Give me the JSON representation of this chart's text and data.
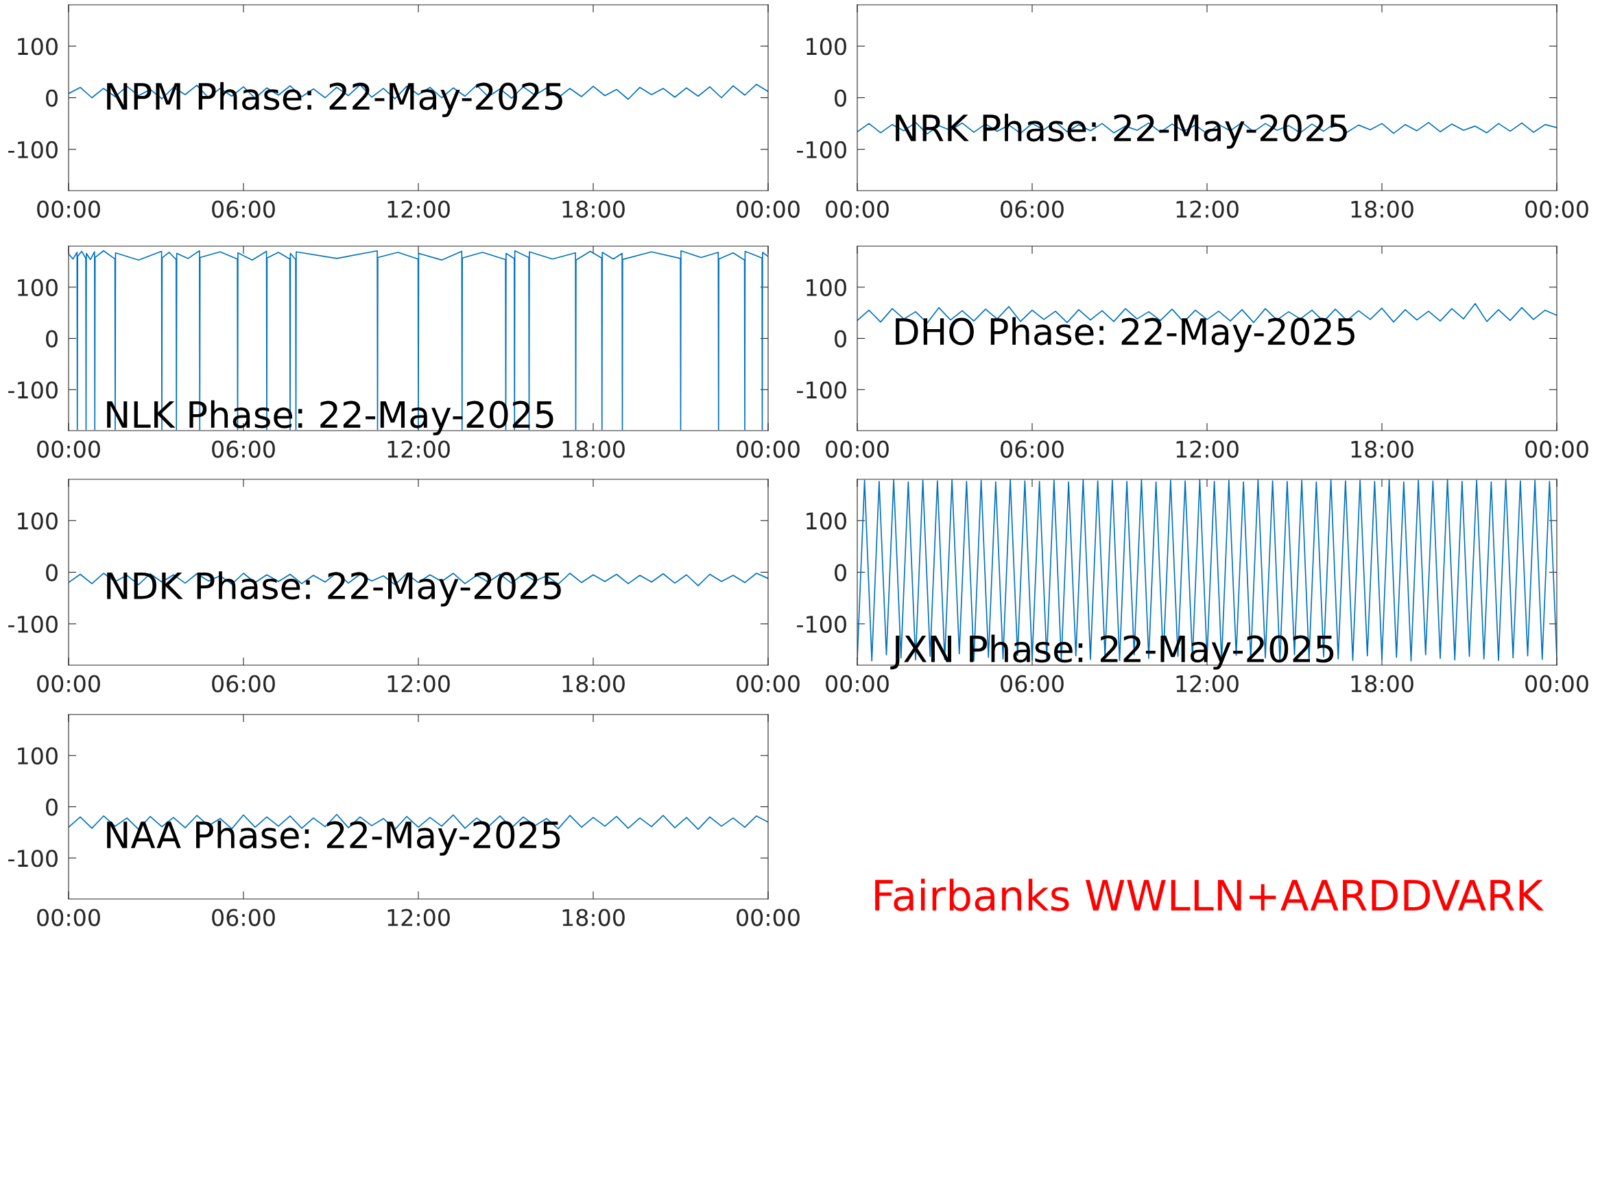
{
  "chart_data": [
    {
      "type": "line",
      "title": "NPM Phase: 22-May-2025",
      "xlim": [
        0,
        24
      ],
      "ylim": [
        -180,
        180
      ],
      "yticks": [
        -100,
        0,
        100
      ],
      "xticks": [
        {
          "value": 0,
          "label": "00:00"
        },
        {
          "value": 6,
          "label": "06:00"
        },
        {
          "value": 12,
          "label": "12:00"
        },
        {
          "value": 18,
          "label": "18:00"
        },
        {
          "value": 24,
          "label": "00:00"
        }
      ],
      "x": [
        0,
        0.4,
        0.8,
        1.2,
        1.6,
        2,
        2.4,
        2.8,
        3.2,
        3.6,
        4,
        4.4,
        4.8,
        5.2,
        5.6,
        6,
        6.4,
        6.8,
        7.2,
        7.6,
        8,
        8.4,
        8.8,
        9.2,
        9.6,
        10,
        10.4,
        10.8,
        11.2,
        11.6,
        12,
        12.4,
        12.8,
        13.2,
        13.6,
        14,
        14.4,
        14.8,
        15.2,
        15.6,
        16,
        16.4,
        16.8,
        17.2,
        17.6,
        18,
        18.4,
        18.8,
        19.2,
        19.6,
        20,
        20.4,
        20.8,
        21.2,
        21.6,
        22,
        22.4,
        22.8,
        23.2,
        23.6,
        24
      ],
      "series": [
        {
          "color": "#0072bd",
          "values": [
            8,
            20,
            0,
            18,
            2,
            22,
            4,
            16,
            -2,
            20,
            6,
            24,
            0,
            18,
            3,
            21,
            -1,
            19,
            5,
            23,
            2,
            17,
            0,
            20,
            4,
            25,
            1,
            18,
            -2,
            22,
            6,
            20,
            0,
            19,
            3,
            24,
            2,
            17,
            -1,
            21,
            5,
            19,
            0,
            18,
            2,
            22,
            4,
            16,
            -3,
            20,
            6,
            18,
            1,
            19,
            3,
            21,
            0,
            23,
            5,
            26,
            12
          ]
        }
      ]
    },
    {
      "type": "line",
      "title": "NRK Phase: 22-May-2025",
      "xlim": [
        0,
        24
      ],
      "ylim": [
        -180,
        180
      ],
      "yticks": [
        -100,
        0,
        100
      ],
      "xticks": [
        {
          "value": 0,
          "label": "00:00"
        },
        {
          "value": 6,
          "label": "06:00"
        },
        {
          "value": 12,
          "label": "12:00"
        },
        {
          "value": 18,
          "label": "18:00"
        },
        {
          "value": 24,
          "label": "00:00"
        }
      ],
      "x": [
        0,
        0.4,
        0.8,
        1.2,
        1.6,
        2,
        2.4,
        2.8,
        3.2,
        3.6,
        4,
        4.4,
        4.8,
        5.2,
        5.6,
        6,
        6.4,
        6.8,
        7.2,
        7.6,
        8,
        8.4,
        8.8,
        9.2,
        9.6,
        10,
        10.4,
        10.8,
        11.2,
        11.6,
        12,
        12.4,
        12.8,
        13.2,
        13.6,
        14,
        14.4,
        14.8,
        15.2,
        15.6,
        16,
        16.4,
        16.8,
        17.2,
        17.6,
        18,
        18.4,
        18.8,
        19.2,
        19.6,
        20,
        20.4,
        20.8,
        21.2,
        21.6,
        22,
        22.4,
        22.8,
        23.2,
        23.6,
        24
      ],
      "series": [
        {
          "color": "#0072bd",
          "values": [
            -66,
            -50,
            -68,
            -52,
            -64,
            -48,
            -70,
            -54,
            -63,
            -49,
            -67,
            -51,
            -65,
            -53,
            -69,
            -50,
            -62,
            -47,
            -66,
            -52,
            -64,
            -50,
            -68,
            -55,
            -63,
            -49,
            -67,
            -51,
            -65,
            -53,
            -70,
            -52,
            -64,
            -48,
            -66,
            -50,
            -63,
            -54,
            -68,
            -51,
            -65,
            -49,
            -67,
            -53,
            -62,
            -50,
            -69,
            -52,
            -64,
            -48,
            -66,
            -51,
            -63,
            -55,
            -68,
            -50,
            -65,
            -49,
            -67,
            -52,
            -58
          ]
        }
      ]
    },
    {
      "type": "line",
      "title": "NLK Phase: 22-May-2025",
      "xlim": [
        0,
        24
      ],
      "ylim": [
        -180,
        180
      ],
      "yticks": [
        -100,
        0,
        100
      ],
      "xticks": [
        {
          "value": 0,
          "label": "00:00"
        },
        {
          "value": 6,
          "label": "06:00"
        },
        {
          "value": 12,
          "label": "12:00"
        },
        {
          "value": 18,
          "label": "18:00"
        },
        {
          "value": 24,
          "label": "00:00"
        }
      ],
      "x": [
        0,
        0.15,
        0.29,
        0.3,
        0.31,
        0.45,
        0.59,
        0.6,
        0.61,
        0.75,
        0.89,
        0.9,
        0.91,
        1.2,
        1.59,
        1.6,
        1.61,
        2.4,
        3.19,
        3.2,
        3.21,
        3.45,
        3.69,
        3.7,
        3.71,
        4.1,
        4.49,
        4.5,
        4.51,
        5.2,
        5.79,
        5.8,
        5.81,
        6.3,
        6.79,
        6.8,
        6.81,
        7.2,
        7.59,
        7.6,
        7.61,
        7.79,
        7.8,
        7.81,
        9.2,
        10.59,
        10.6,
        10.61,
        11.3,
        11.99,
        12.0,
        12.01,
        12.8,
        13.49,
        13.5,
        13.51,
        14.2,
        14.99,
        15.0,
        15.01,
        15.29,
        15.3,
        15.31,
        15.79,
        15.8,
        15.81,
        16.6,
        17.39,
        17.4,
        17.41,
        17.9,
        18.29,
        18.3,
        18.31,
        18.69,
        18.99,
        19.0,
        19.01,
        20.0,
        20.99,
        21.0,
        21.01,
        21.7,
        22.29,
        22.3,
        22.31,
        22.8,
        23.19,
        23.2,
        23.21,
        23.79,
        23.8,
        23.81,
        24
      ],
      "series": [
        {
          "color": "#0072bd",
          "values": [
            165,
            155,
            168,
            -178,
            160,
            170,
            156,
            -178,
            166,
            154,
            169,
            -178,
            158,
            171,
            155,
            -178,
            167,
            153,
            170,
            -178,
            157,
            168,
            154,
            -178,
            166,
            156,
            171,
            -178,
            158,
            169,
            155,
            -178,
            167,
            153,
            170,
            -178,
            157,
            168,
            155,
            -178,
            166,
            154,
            -178,
            169,
            156,
            171,
            -178,
            158,
            168,
            155,
            -178,
            166,
            153,
            170,
            -178,
            157,
            168,
            154,
            -178,
            166,
            156,
            -178,
            171,
            158,
            -178,
            169,
            155,
            167,
            -178,
            153,
            170,
            157,
            -178,
            168,
            155,
            166,
            -178,
            154,
            169,
            156,
            -178,
            171,
            158,
            168,
            -178,
            155,
            167,
            153,
            -178,
            170,
            157,
            -178,
            168,
            160
          ]
        }
      ]
    },
    {
      "type": "line",
      "title": "DHO Phase: 22-May-2025",
      "xlim": [
        0,
        24
      ],
      "ylim": [
        -180,
        180
      ],
      "yticks": [
        -100,
        0,
        100
      ],
      "xticks": [
        {
          "value": 0,
          "label": "00:00"
        },
        {
          "value": 6,
          "label": "06:00"
        },
        {
          "value": 12,
          "label": "12:00"
        },
        {
          "value": 18,
          "label": "18:00"
        },
        {
          "value": 24,
          "label": "00:00"
        }
      ],
      "x": [
        0,
        0.4,
        0.8,
        1.2,
        1.6,
        2,
        2.4,
        2.8,
        3.2,
        3.6,
        4,
        4.4,
        4.8,
        5.2,
        5.6,
        6,
        6.4,
        6.8,
        7.2,
        7.6,
        8,
        8.4,
        8.8,
        9.2,
        9.6,
        10,
        10.4,
        10.8,
        11.2,
        11.6,
        12,
        12.4,
        12.8,
        13.2,
        13.6,
        14,
        14.4,
        14.8,
        15.2,
        15.6,
        16,
        16.4,
        16.8,
        17.2,
        17.6,
        18,
        18.4,
        18.8,
        19.2,
        19.6,
        20,
        20.4,
        20.8,
        21.2,
        21.6,
        22,
        22.4,
        22.8,
        23.2,
        23.6,
        24
      ],
      "series": [
        {
          "color": "#0072bd",
          "values": [
            35,
            55,
            32,
            58,
            38,
            52,
            30,
            60,
            36,
            54,
            34,
            57,
            38,
            62,
            33,
            55,
            37,
            53,
            31,
            56,
            36,
            54,
            33,
            58,
            38,
            52,
            35,
            57,
            32,
            55,
            37,
            53,
            34,
            56,
            31,
            58,
            36,
            52,
            38,
            55,
            33,
            57,
            35,
            54,
            37,
            59,
            32,
            56,
            36,
            53,
            34,
            58,
            38,
            68,
            33,
            56,
            35,
            60,
            37,
            55,
            45
          ]
        }
      ]
    },
    {
      "type": "line",
      "title": "NDK Phase: 22-May-2025",
      "xlim": [
        0,
        24
      ],
      "ylim": [
        -180,
        180
      ],
      "yticks": [
        -100,
        0,
        100
      ],
      "xticks": [
        {
          "value": 0,
          "label": "00:00"
        },
        {
          "value": 6,
          "label": "06:00"
        },
        {
          "value": 12,
          "label": "12:00"
        },
        {
          "value": 18,
          "label": "18:00"
        },
        {
          "value": 24,
          "label": "00:00"
        }
      ],
      "x": [
        0,
        0.4,
        0.8,
        1.2,
        1.6,
        2,
        2.4,
        2.8,
        3.2,
        3.6,
        4,
        4.4,
        4.8,
        5.2,
        5.6,
        6,
        6.4,
        6.8,
        7.2,
        7.6,
        8,
        8.4,
        8.8,
        9.2,
        9.6,
        10,
        10.4,
        10.8,
        11.2,
        11.6,
        12,
        12.4,
        12.8,
        13.2,
        13.6,
        14,
        14.4,
        14.8,
        15.2,
        15.6,
        16,
        16.4,
        16.8,
        17.2,
        17.6,
        18,
        18.4,
        18.8,
        19.2,
        19.6,
        20,
        20.4,
        20.8,
        21.2,
        21.6,
        22,
        22.4,
        22.8,
        23.2,
        23.6,
        24
      ],
      "series": [
        {
          "color": "#0072bd",
          "values": [
            -20,
            -4,
            -22,
            -2,
            -18,
            -6,
            -24,
            -3,
            -19,
            -5,
            -21,
            -3,
            -17,
            -7,
            -23,
            -2,
            -20,
            -5,
            -18,
            -4,
            -22,
            -6,
            -19,
            -1,
            -21,
            -4,
            -17,
            -7,
            -24,
            -3,
            -20,
            -5,
            -18,
            -2,
            -22,
            -6,
            -19,
            -4,
            -21,
            -3,
            -17,
            -7,
            -23,
            -2,
            -20,
            -5,
            -18,
            -4,
            -22,
            -6,
            -19,
            -3,
            -21,
            -5,
            -26,
            -4,
            -18,
            -6,
            -20,
            -2,
            -12
          ]
        }
      ]
    },
    {
      "type": "line",
      "title": "JXN Phase: 22-May-2025",
      "xlim": [
        0,
        24
      ],
      "ylim": [
        -180,
        180
      ],
      "yticks": [
        -100,
        0,
        100
      ],
      "xticks": [
        {
          "value": 0,
          "label": "00:00"
        },
        {
          "value": 6,
          "label": "06:00"
        },
        {
          "value": 12,
          "label": "12:00"
        },
        {
          "value": 18,
          "label": "18:00"
        },
        {
          "value": 24,
          "label": "00:00"
        }
      ],
      "x": [
        0,
        0.25,
        0.5,
        0.75,
        1,
        1.25,
        1.5,
        1.75,
        2,
        2.25,
        2.5,
        2.75,
        3,
        3.25,
        3.5,
        3.75,
        4,
        4.25,
        4.5,
        4.75,
        5,
        5.25,
        5.5,
        5.75,
        6,
        6.25,
        6.5,
        6.75,
        7,
        7.25,
        7.5,
        7.75,
        8,
        8.25,
        8.5,
        8.75,
        9,
        9.25,
        9.5,
        9.75,
        10,
        10.25,
        10.5,
        10.75,
        11,
        11.25,
        11.5,
        11.75,
        12,
        12.25,
        12.5,
        12.75,
        13,
        13.25,
        13.5,
        13.75,
        14,
        14.25,
        14.5,
        14.75,
        15,
        15.25,
        15.5,
        15.75,
        16,
        16.25,
        16.5,
        16.75,
        17,
        17.25,
        17.5,
        17.75,
        18,
        18.25,
        18.5,
        18.75,
        19,
        19.25,
        19.5,
        19.75,
        20,
        20.25,
        20.5,
        20.75,
        21,
        21.25,
        21.5,
        21.75,
        22,
        22.25,
        22.5,
        22.75,
        23,
        23.25,
        23.5,
        23.75,
        24
      ],
      "series": [
        {
          "color": "#0072bd",
          "values": [
            -168,
            178,
            -172,
            176,
            -160,
            179,
            -166,
            175,
            -170,
            178,
            -163,
            177,
            -169,
            179,
            -158,
            176,
            -172,
            178,
            -165,
            175,
            -168,
            179,
            -161,
            177,
            -170,
            176,
            -166,
            178,
            -173,
            175,
            -162,
            179,
            -169,
            177,
            -164,
            178,
            -171,
            176,
            -160,
            179,
            -167,
            175,
            -170,
            178,
            -163,
            177,
            -168,
            179,
            -165,
            176,
            -172,
            178,
            -161,
            175,
            -169,
            179,
            -166,
            177,
            -173,
            176,
            -160,
            178,
            -170,
            175,
            -164,
            179,
            -168,
            177,
            -171,
            178,
            -162,
            176,
            -169,
            179,
            -165,
            175,
            -172,
            178,
            -160,
            177,
            -167,
            179,
            -170,
            176,
            -163,
            178,
            -168,
            175,
            -171,
            179,
            -166,
            177,
            -162,
            178,
            -169,
            176,
            -165
          ]
        }
      ]
    },
    {
      "type": "line",
      "title": "NAA Phase: 22-May-2025",
      "xlim": [
        0,
        24
      ],
      "ylim": [
        -180,
        180
      ],
      "yticks": [
        -100,
        0,
        100
      ],
      "xticks": [
        {
          "value": 0,
          "label": "00:00"
        },
        {
          "value": 6,
          "label": "06:00"
        },
        {
          "value": 12,
          "label": "12:00"
        },
        {
          "value": 18,
          "label": "18:00"
        },
        {
          "value": 24,
          "label": "00:00"
        }
      ],
      "x": [
        0,
        0.4,
        0.8,
        1.2,
        1.6,
        2,
        2.4,
        2.8,
        3.2,
        3.6,
        4,
        4.4,
        4.8,
        5.2,
        5.6,
        6,
        6.4,
        6.8,
        7.2,
        7.6,
        8,
        8.4,
        8.8,
        9.2,
        9.6,
        10,
        10.4,
        10.8,
        11.2,
        11.6,
        12,
        12.4,
        12.8,
        13.2,
        13.6,
        14,
        14.4,
        14.8,
        15.2,
        15.6,
        16,
        16.4,
        16.8,
        17.2,
        17.6,
        18,
        18.4,
        18.8,
        19.2,
        19.6,
        20,
        20.4,
        20.8,
        21.2,
        21.6,
        22,
        22.4,
        22.8,
        23.2,
        23.6,
        24
      ],
      "series": [
        {
          "color": "#0072bd",
          "values": [
            -40,
            -20,
            -42,
            -18,
            -38,
            -22,
            -44,
            -19,
            -39,
            -21,
            -41,
            -17,
            -37,
            -23,
            -43,
            -16,
            -40,
            -20,
            -38,
            -18,
            -42,
            -22,
            -39,
            -15,
            -41,
            -20,
            -37,
            -23,
            -44,
            -19,
            -40,
            -21,
            -38,
            -16,
            -42,
            -22,
            -39,
            -18,
            -41,
            -20,
            -37,
            -23,
            -43,
            -17,
            -40,
            -21,
            -38,
            -19,
            -42,
            -22,
            -39,
            -17,
            -41,
            -21,
            -44,
            -20,
            -38,
            -22,
            -40,
            -18,
            -30
          ]
        }
      ]
    },
    {
      "type": "other",
      "annotations": [
        "Fairbanks WWLLN+AARDDVARK"
      ]
    }
  ]
}
